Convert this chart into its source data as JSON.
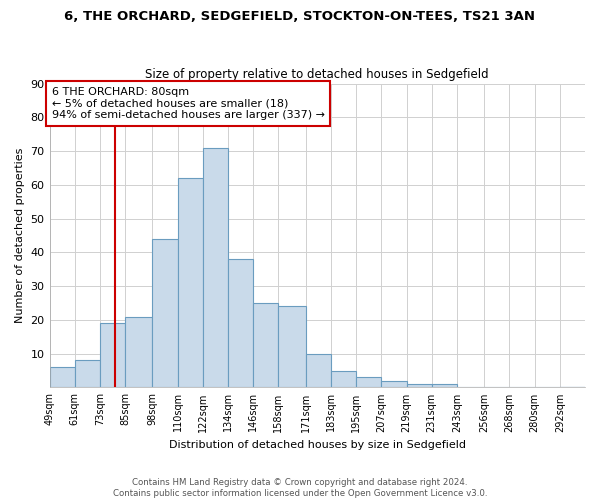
{
  "title": "6, THE ORCHARD, SEDGEFIELD, STOCKTON-ON-TEES, TS21 3AN",
  "subtitle": "Size of property relative to detached houses in Sedgefield",
  "xlabel": "Distribution of detached houses by size in Sedgefield",
  "ylabel": "Number of detached properties",
  "footer_line1": "Contains HM Land Registry data © Crown copyright and database right 2024.",
  "footer_line2": "Contains public sector information licensed under the Open Government Licence v3.0.",
  "annotation_line1": "6 THE ORCHARD: 80sqm",
  "annotation_line2": "← 5% of detached houses are smaller (18)",
  "annotation_line3": "94% of semi-detached houses are larger (337) →",
  "subject_value": 80,
  "red_line_x": 80,
  "categories": [
    "49sqm",
    "61sqm",
    "73sqm",
    "85sqm",
    "98sqm",
    "110sqm",
    "122sqm",
    "134sqm",
    "146sqm",
    "158sqm",
    "171sqm",
    "183sqm",
    "195sqm",
    "207sqm",
    "219sqm",
    "231sqm",
    "243sqm",
    "256sqm",
    "268sqm",
    "280sqm",
    "292sqm"
  ],
  "bin_edges": [
    49,
    61,
    73,
    85,
    98,
    110,
    122,
    134,
    146,
    158,
    171,
    183,
    195,
    207,
    219,
    231,
    243,
    256,
    268,
    280,
    292
  ],
  "bin_widths": [
    12,
    12,
    12,
    13,
    12,
    12,
    12,
    12,
    12,
    13,
    12,
    12,
    12,
    12,
    12,
    12,
    13,
    12,
    12,
    12,
    12
  ],
  "values": [
    6,
    8,
    19,
    21,
    44,
    62,
    71,
    38,
    25,
    24,
    10,
    5,
    3,
    2,
    1,
    1,
    0,
    0,
    0,
    0,
    0
  ],
  "bar_color": "#c9daea",
  "bar_edge_color": "#6a9cbf",
  "red_line_color": "#cc0000",
  "annotation_box_color": "#cc0000",
  "grid_color": "#d0d0d0",
  "background_color": "#ffffff",
  "ylim": [
    0,
    90
  ],
  "yticks": [
    0,
    10,
    20,
    30,
    40,
    50,
    60,
    70,
    80,
    90
  ]
}
